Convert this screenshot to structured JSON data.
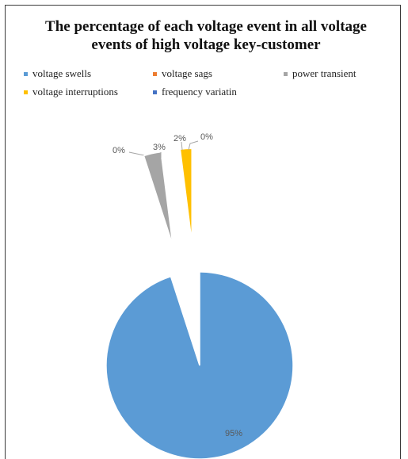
{
  "chart_data": {
    "type": "pie",
    "title": "The percentage of each voltage event in all voltage events of high voltage key-customer",
    "title_lines": [
      "The percentage of each voltage event in all voltage",
      "events of high voltage key-customer"
    ],
    "legend_position": "top",
    "series": [
      {
        "name": "voltage swells",
        "value": 95,
        "label": "95%",
        "color": "#5b9bd5"
      },
      {
        "name": "voltage sags",
        "value": 0,
        "label": "0%",
        "color": "#ed7d31"
      },
      {
        "name": "power transient",
        "value": 3,
        "label": "3%",
        "color": "#a5a5a5"
      },
      {
        "name": "voltage interruptions",
        "value": 2,
        "label": "2%",
        "color": "#ffc000"
      },
      {
        "name": "frequency variatin",
        "value": 0,
        "label": "0%",
        "color": "#4472c4"
      }
    ]
  }
}
